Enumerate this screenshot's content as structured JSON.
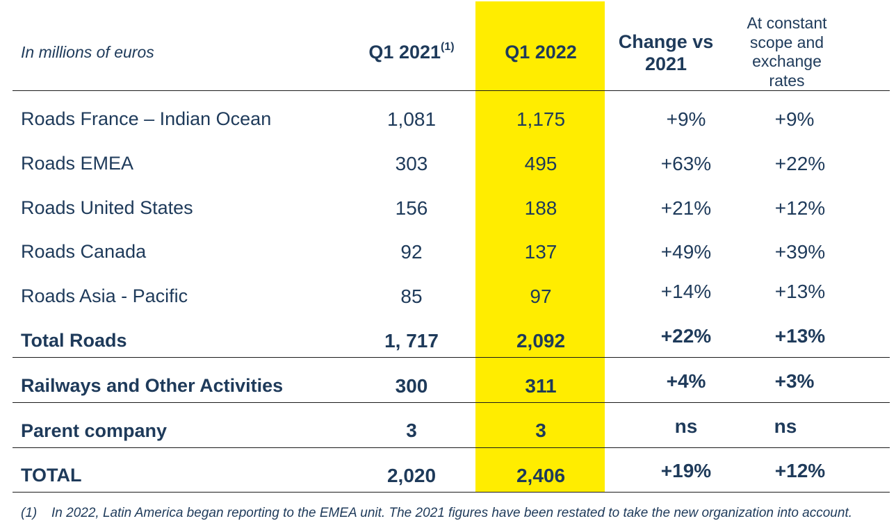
{
  "table": {
    "unit_label": "In millions of euros",
    "columns": {
      "q1_2021": "Q1 2021",
      "q1_2021_note": "(1)",
      "q1_2022": "Q1 2022",
      "change_line1": "Change vs",
      "change_line2": "2021",
      "constant_line1": "At constant",
      "constant_line2": "scope and",
      "constant_line3": "exchange",
      "constant_line4": "rates"
    },
    "rows": [
      {
        "label": "Roads France – Indian Ocean",
        "q1_2021": "1,081",
        "q1_2022": "1,175",
        "change": "+9%",
        "constant": "+9%"
      },
      {
        "label": "Roads EMEA",
        "q1_2021": "303",
        "q1_2022": "495",
        "change": "+63%",
        "constant": "+22%"
      },
      {
        "label": "Roads United States",
        "q1_2021": "156",
        "q1_2022": "188",
        "change": "+21%",
        "constant": "+12%"
      },
      {
        "label": "Roads Canada",
        "q1_2021": "92",
        "q1_2022": "137",
        "change": "+49%",
        "constant": "+39%"
      },
      {
        "label": "Roads Asia - Pacific",
        "q1_2021": "85",
        "q1_2022": "97",
        "change": "+14%",
        "constant": "+13%"
      },
      {
        "label": "Total Roads",
        "q1_2021": "1, 717",
        "q1_2022": "2,092",
        "change": "+22%",
        "constant": "+13%"
      },
      {
        "label": "Railways and Other Activities",
        "q1_2021": "300",
        "q1_2022": "311",
        "change": "+4%",
        "constant": "+3%"
      },
      {
        "label": "Parent company",
        "q1_2021": "3",
        "q1_2022": "3",
        "change": "ns",
        "constant": "ns"
      },
      {
        "label": "TOTAL",
        "q1_2021": "2,020",
        "q1_2022": "2,406",
        "change": "+19%",
        "constant": "+12%"
      }
    ]
  },
  "footnote": {
    "mark": "(1)",
    "text": "In 2022, Latin America began reporting to the EMEA unit. The 2021 figures have been restated to take the new organization into account."
  },
  "colors": {
    "text": "#1e3a5a",
    "highlight": "#ffed00",
    "rule": "#1a1a1a"
  }
}
